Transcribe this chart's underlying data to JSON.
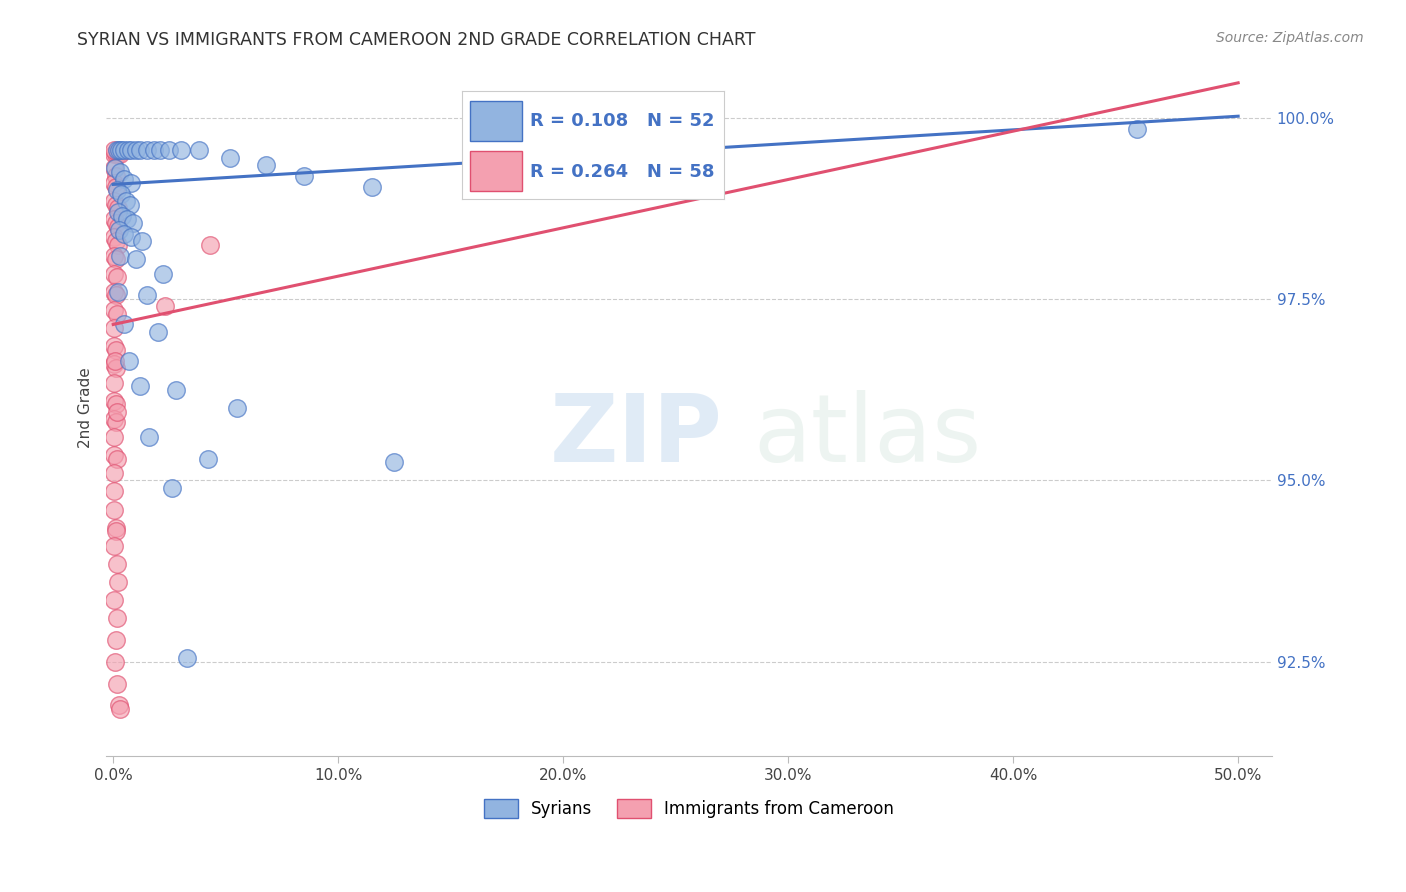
{
  "title": "SYRIAN VS IMMIGRANTS FROM CAMEROON 2ND GRADE CORRELATION CHART",
  "source": "Source: ZipAtlas.com",
  "ylabel": "2nd Grade",
  "y_min": 91.2,
  "y_max": 100.8,
  "x_min": -0.3,
  "x_max": 51.5,
  "yticks": [
    92.5,
    95.0,
    97.5,
    100.0
  ],
  "xticks": [
    0,
    10,
    20,
    30,
    40,
    50
  ],
  "legend_blue_R": "0.108",
  "legend_blue_N": "52",
  "legend_pink_R": "0.264",
  "legend_pink_N": "58",
  "label_blue": "Syrians",
  "label_pink": "Immigrants from Cameroon",
  "blue_color": "#92B4E0",
  "pink_color": "#F4A0B0",
  "blue_edge": "#4472C4",
  "pink_edge": "#E05070",
  "line_blue_color": "#4472C4",
  "line_pink_color": "#E05070",
  "watermark": "ZIPatlas",
  "blue_line_x": [
    0,
    50
  ],
  "blue_line_y": [
    99.08,
    100.02
  ],
  "pink_line_x": [
    0,
    50
  ],
  "pink_line_y": [
    97.15,
    100.48
  ],
  "blue_scatter": [
    [
      0.15,
      99.55
    ],
    [
      0.25,
      99.55
    ],
    [
      0.35,
      99.55
    ],
    [
      0.5,
      99.55
    ],
    [
      0.65,
      99.55
    ],
    [
      0.8,
      99.55
    ],
    [
      1.0,
      99.55
    ],
    [
      1.2,
      99.55
    ],
    [
      1.5,
      99.55
    ],
    [
      1.8,
      99.55
    ],
    [
      2.1,
      99.55
    ],
    [
      2.5,
      99.55
    ],
    [
      3.0,
      99.55
    ],
    [
      3.8,
      99.55
    ],
    [
      0.1,
      99.3
    ],
    [
      0.3,
      99.25
    ],
    [
      0.5,
      99.15
    ],
    [
      0.8,
      99.1
    ],
    [
      0.15,
      99.0
    ],
    [
      0.35,
      98.95
    ],
    [
      0.55,
      98.85
    ],
    [
      0.75,
      98.8
    ],
    [
      0.2,
      98.7
    ],
    [
      0.4,
      98.65
    ],
    [
      0.6,
      98.6
    ],
    [
      0.9,
      98.55
    ],
    [
      0.25,
      98.45
    ],
    [
      0.5,
      98.4
    ],
    [
      0.8,
      98.35
    ],
    [
      1.3,
      98.3
    ],
    [
      0.3,
      98.1
    ],
    [
      1.0,
      98.05
    ],
    [
      2.2,
      97.85
    ],
    [
      0.2,
      97.6
    ],
    [
      1.5,
      97.55
    ],
    [
      0.5,
      97.15
    ],
    [
      2.0,
      97.05
    ],
    [
      0.7,
      96.65
    ],
    [
      1.2,
      96.3
    ],
    [
      2.8,
      96.25
    ],
    [
      5.5,
      96.0
    ],
    [
      1.6,
      95.6
    ],
    [
      4.2,
      95.3
    ],
    [
      2.6,
      94.9
    ],
    [
      12.5,
      95.25
    ],
    [
      5.2,
      99.45
    ],
    [
      6.8,
      99.35
    ],
    [
      8.5,
      99.2
    ],
    [
      11.5,
      99.05
    ],
    [
      16.5,
      99.0
    ],
    [
      45.5,
      99.85
    ],
    [
      3.3,
      92.55
    ]
  ],
  "pink_scatter": [
    [
      0.05,
      99.5
    ],
    [
      0.12,
      99.5
    ],
    [
      0.2,
      99.5
    ],
    [
      0.3,
      99.5
    ],
    [
      0.05,
      99.3
    ],
    [
      0.12,
      99.2
    ],
    [
      0.05,
      99.1
    ],
    [
      0.12,
      99.05
    ],
    [
      0.05,
      98.85
    ],
    [
      0.12,
      98.8
    ],
    [
      0.2,
      98.75
    ],
    [
      0.05,
      98.6
    ],
    [
      0.12,
      98.55
    ],
    [
      0.2,
      98.5
    ],
    [
      0.05,
      98.35
    ],
    [
      0.12,
      98.3
    ],
    [
      0.2,
      98.25
    ],
    [
      0.05,
      98.1
    ],
    [
      0.12,
      98.05
    ],
    [
      0.05,
      97.85
    ],
    [
      0.15,
      97.8
    ],
    [
      0.05,
      97.6
    ],
    [
      0.12,
      97.55
    ],
    [
      0.05,
      97.35
    ],
    [
      0.15,
      97.3
    ],
    [
      0.05,
      97.1
    ],
    [
      0.05,
      96.85
    ],
    [
      0.12,
      96.8
    ],
    [
      0.05,
      96.6
    ],
    [
      0.12,
      96.55
    ],
    [
      0.05,
      96.35
    ],
    [
      0.05,
      96.1
    ],
    [
      0.12,
      96.05
    ],
    [
      0.05,
      95.85
    ],
    [
      0.12,
      95.8
    ],
    [
      0.05,
      95.6
    ],
    [
      0.05,
      95.35
    ],
    [
      0.15,
      95.3
    ],
    [
      0.05,
      95.1
    ],
    [
      0.05,
      94.85
    ],
    [
      0.05,
      94.6
    ],
    [
      0.12,
      94.35
    ],
    [
      0.12,
      94.3
    ],
    [
      0.05,
      94.1
    ],
    [
      0.15,
      93.85
    ],
    [
      0.2,
      93.6
    ],
    [
      0.05,
      93.35
    ],
    [
      2.3,
      97.4
    ],
    [
      4.3,
      98.25
    ],
    [
      0.25,
      91.9
    ],
    [
      0.28,
      91.85
    ],
    [
      0.18,
      92.2
    ],
    [
      0.08,
      92.5
    ],
    [
      0.12,
      92.8
    ],
    [
      0.18,
      93.1
    ],
    [
      0.08,
      96.65
    ],
    [
      0.15,
      95.95
    ],
    [
      0.05,
      99.55
    ]
  ]
}
